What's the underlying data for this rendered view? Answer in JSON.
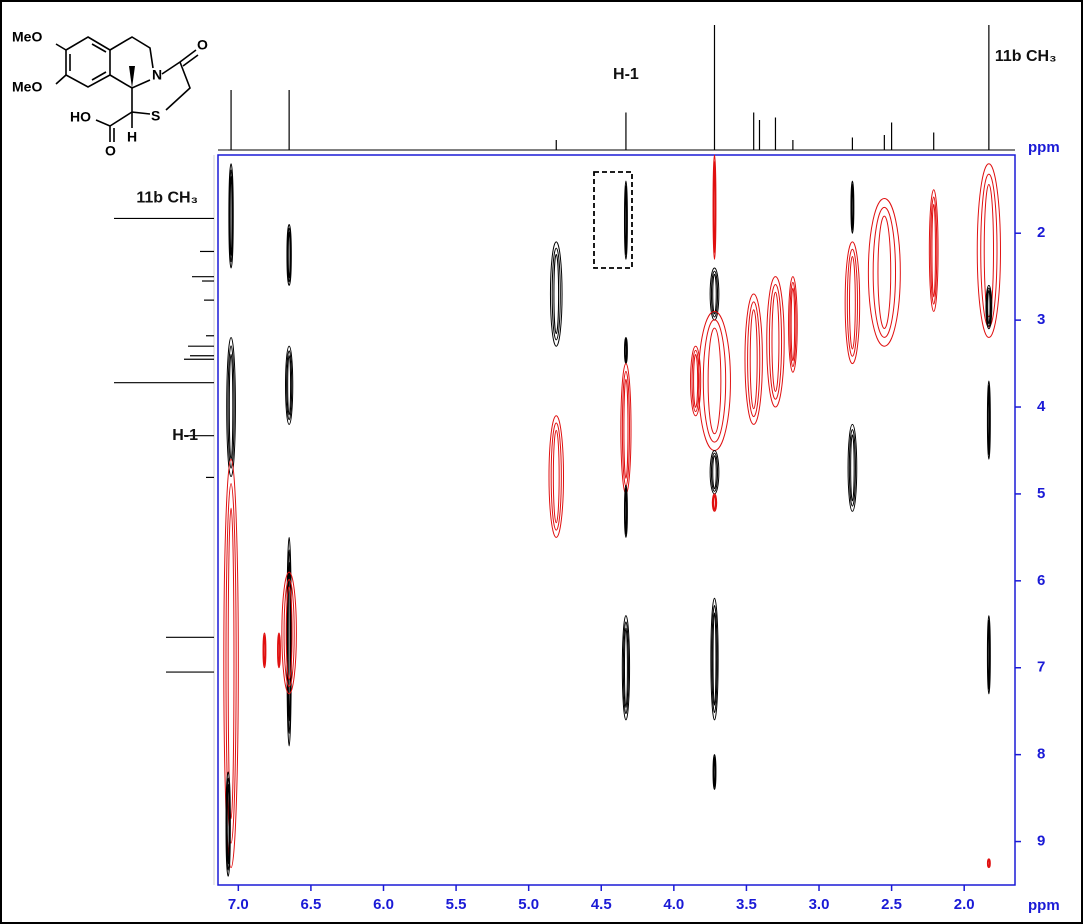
{
  "chart_data": {
    "type": "contour2d",
    "xlim": [
      7.14,
      1.65
    ],
    "ylim": [
      1.1,
      9.5
    ],
    "xticks": [
      {
        "value": 7,
        "label": "7.0"
      },
      6.5,
      {
        "value": 6,
        "label": "6.0"
      },
      5.5,
      {
        "value": 5,
        "label": "5.0"
      },
      4.5,
      {
        "value": 4,
        "label": "4.0"
      },
      3.5,
      {
        "value": 3,
        "label": "3.0"
      },
      2.5,
      {
        "value": 2,
        "label": "2.0"
      }
    ],
    "yticks": [
      2,
      3,
      4,
      5,
      6,
      7,
      8,
      9
    ],
    "x_label": "ppm",
    "y_label": "ppm",
    "axis_color": "#1a1ad6",
    "peaks": [
      {
        "x": 7.05,
        "y": [
          1.2,
          2.4
        ],
        "width": 0.03,
        "color": "#000000"
      },
      {
        "x": 7.05,
        "y": [
          3.2,
          4.8
        ],
        "width": 0.06,
        "color": "#000000"
      },
      {
        "x": 7.05,
        "y": [
          4.6,
          9.3
        ],
        "width": 0.1,
        "color": "#e01010"
      },
      {
        "x": 7.07,
        "y": [
          8.2,
          9.4
        ],
        "width": 0.03,
        "color": "#000000"
      },
      {
        "x": 6.65,
        "y": [
          1.9,
          2.6
        ],
        "width": 0.03,
        "color": "#000000"
      },
      {
        "x": 6.65,
        "y": [
          3.3,
          4.2
        ],
        "width": 0.05,
        "color": "#000000"
      },
      {
        "x": 6.65,
        "y": [
          5.5,
          7.9
        ],
        "width": 0.03,
        "color": "#000000"
      },
      {
        "x": 6.65,
        "y": [
          5.9,
          7.3
        ],
        "width": 0.1,
        "color": "#e01010"
      },
      {
        "x": 6.82,
        "y": [
          6.6,
          7.0
        ],
        "width": 0.02,
        "color": "#e01010"
      },
      {
        "x": 6.72,
        "y": [
          6.6,
          7.0
        ],
        "width": 0.02,
        "color": "#e01010"
      },
      {
        "x": 4.81,
        "y": [
          2.1,
          3.3
        ],
        "width": 0.08,
        "color": "#000000"
      },
      {
        "x": 4.81,
        "y": [
          4.1,
          5.5
        ],
        "width": 0.1,
        "color": "#e01010"
      },
      {
        "x": 4.33,
        "y": [
          1.4,
          2.3
        ],
        "width": 0.02,
        "color": "#000000"
      },
      {
        "x": 4.33,
        "y": [
          3.2,
          3.5
        ],
        "width": 0.02,
        "color": "#000000"
      },
      {
        "x": 4.33,
        "y": [
          3.5,
          5.0
        ],
        "width": 0.07,
        "color": "#e01010"
      },
      {
        "x": 4.33,
        "y": [
          4.9,
          5.5
        ],
        "width": 0.02,
        "color": "#000000"
      },
      {
        "x": 4.33,
        "y": [
          6.4,
          7.6
        ],
        "width": 0.05,
        "color": "#000000"
      },
      {
        "x": 3.72,
        "y": [
          1.1,
          2.3
        ],
        "width": 0.02,
        "color": "#e01010"
      },
      {
        "x": 3.72,
        "y": [
          2.4,
          3.0
        ],
        "width": 0.06,
        "color": "#000000"
      },
      {
        "x": 3.72,
        "y": [
          2.9,
          4.5
        ],
        "width": 0.22,
        "color": "#e01010"
      },
      {
        "x": 3.72,
        "y": [
          4.5,
          5.0
        ],
        "width": 0.06,
        "color": "#000000"
      },
      {
        "x": 3.72,
        "y": [
          5.0,
          5.2
        ],
        "width": 0.03,
        "color": "#e01010"
      },
      {
        "x": 3.72,
        "y": [
          6.2,
          7.6
        ],
        "width": 0.05,
        "color": "#000000"
      },
      {
        "x": 3.72,
        "y": [
          8.0,
          8.4
        ],
        "width": 0.02,
        "color": "#000000"
      },
      {
        "x": 3.85,
        "y": [
          3.3,
          4.1
        ],
        "width": 0.07,
        "color": "#e01010"
      },
      {
        "x": 3.45,
        "y": [
          2.7,
          4.2
        ],
        "width": 0.12,
        "color": "#e01010"
      },
      {
        "x": 3.3,
        "y": [
          2.5,
          4.0
        ],
        "width": 0.12,
        "color": "#e01010"
      },
      {
        "x": 3.18,
        "y": [
          2.5,
          3.6
        ],
        "width": 0.06,
        "color": "#e01010"
      },
      {
        "x": 2.77,
        "y": [
          1.4,
          2.0
        ],
        "width": 0.02,
        "color": "#000000"
      },
      {
        "x": 2.77,
        "y": [
          2.1,
          3.5
        ],
        "width": 0.1,
        "color": "#e01010"
      },
      {
        "x": 2.77,
        "y": [
          4.2,
          5.2
        ],
        "width": 0.06,
        "color": "#000000"
      },
      {
        "x": 2.55,
        "y": [
          1.6,
          3.3
        ],
        "width": 0.22,
        "color": "#e01010"
      },
      {
        "x": 2.21,
        "y": [
          1.5,
          2.9
        ],
        "width": 0.06,
        "color": "#e01010"
      },
      {
        "x": 1.83,
        "y": [
          1.2,
          3.2
        ],
        "width": 0.16,
        "color": "#e01010"
      },
      {
        "x": 1.83,
        "y": [
          2.6,
          3.1
        ],
        "width": 0.04,
        "color": "#000000"
      },
      {
        "x": 1.83,
        "y": [
          3.7,
          4.6
        ],
        "width": 0.02,
        "color": "#000000"
      },
      {
        "x": 1.83,
        "y": [
          6.4,
          7.3
        ],
        "width": 0.02,
        "color": "#000000"
      },
      {
        "x": 1.83,
        "y": [
          9.2,
          9.3
        ],
        "width": 0.02,
        "color": "#e01010"
      }
    ],
    "projection": {
      "x": [
        7.05,
        6.65,
        4.81,
        4.33,
        3.72,
        3.45,
        3.41,
        3.3,
        3.18,
        2.77,
        2.55,
        2.5,
        2.21,
        1.83
      ],
      "intensity": [
        48,
        48,
        8,
        30,
        100,
        30,
        24,
        26,
        8,
        10,
        12,
        22,
        14,
        100
      ]
    },
    "annotations": [
      {
        "text": "H-1",
        "x": 4.33
      },
      {
        "text": "11b CH₃",
        "x": 1.83
      }
    ]
  },
  "structure": {
    "labels": [
      "MeO",
      "MeO",
      "N",
      "O",
      "HO",
      "O",
      "S",
      "H"
    ]
  }
}
